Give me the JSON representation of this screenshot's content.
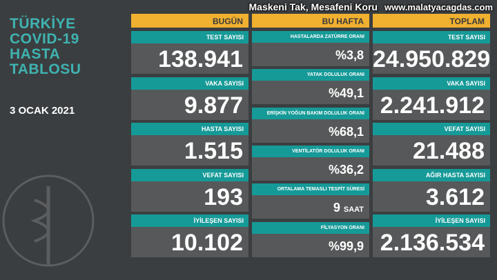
{
  "title": [
    "TÜRKİYE",
    "COVID-19",
    "HASTA",
    "TABLOSU"
  ],
  "date": "3 OCAK 2021",
  "watermark": {
    "line1": "Maskeni Tak, Mesafeni Koru",
    "line2": "www.malatyacagdas.com"
  },
  "colors": {
    "teal": "#169a98",
    "orange": "#f0b030",
    "panel": "#575859",
    "background": "#3b3e40"
  },
  "today": {
    "header": "BUGÜN",
    "items": [
      {
        "label": "TEST SAYISI",
        "value": "138.941"
      },
      {
        "label": "VAKA SAYISI",
        "value": "9.877"
      },
      {
        "label": "HASTA SAYISI",
        "value": "1.515"
      },
      {
        "label": "VEFAT SAYISI",
        "value": "193"
      },
      {
        "label": "İYİLEŞEN SAYISI",
        "value": "10.102"
      }
    ]
  },
  "week": {
    "header": "BU HAFTA",
    "items": [
      {
        "label": "HASTALARDA ZATÜRRE ORANI",
        "value": "%3,8"
      },
      {
        "label": "YATAK DOLULUK ORANI",
        "value": "%49,1"
      },
      {
        "label": "ERİŞKİN YOĞUN BAKIM DOLULUK ORANI",
        "value": "%68,1"
      },
      {
        "label": "VENTİLATÖR DOLULUK ORANI",
        "value": "%36,2"
      },
      {
        "label": "ORTALAMA TEMASLI TESPİT SÜRESİ",
        "value": "9",
        "unit": "SAAT"
      },
      {
        "label": "FİLYASYON ORANI",
        "value": "%99,9"
      }
    ]
  },
  "total": {
    "header": "TOPLAM",
    "items": [
      {
        "label": "TEST SAYISI",
        "value": "24.950.829"
      },
      {
        "label": "VAKA SAYISI",
        "value": "2.241.912"
      },
      {
        "label": "VEFAT SAYISI",
        "value": "21.488"
      },
      {
        "label": "AĞIR HASTA SAYISI",
        "value": "3.612"
      },
      {
        "label": "İYİLEŞEN SAYISI",
        "value": "2.136.534"
      }
    ]
  }
}
